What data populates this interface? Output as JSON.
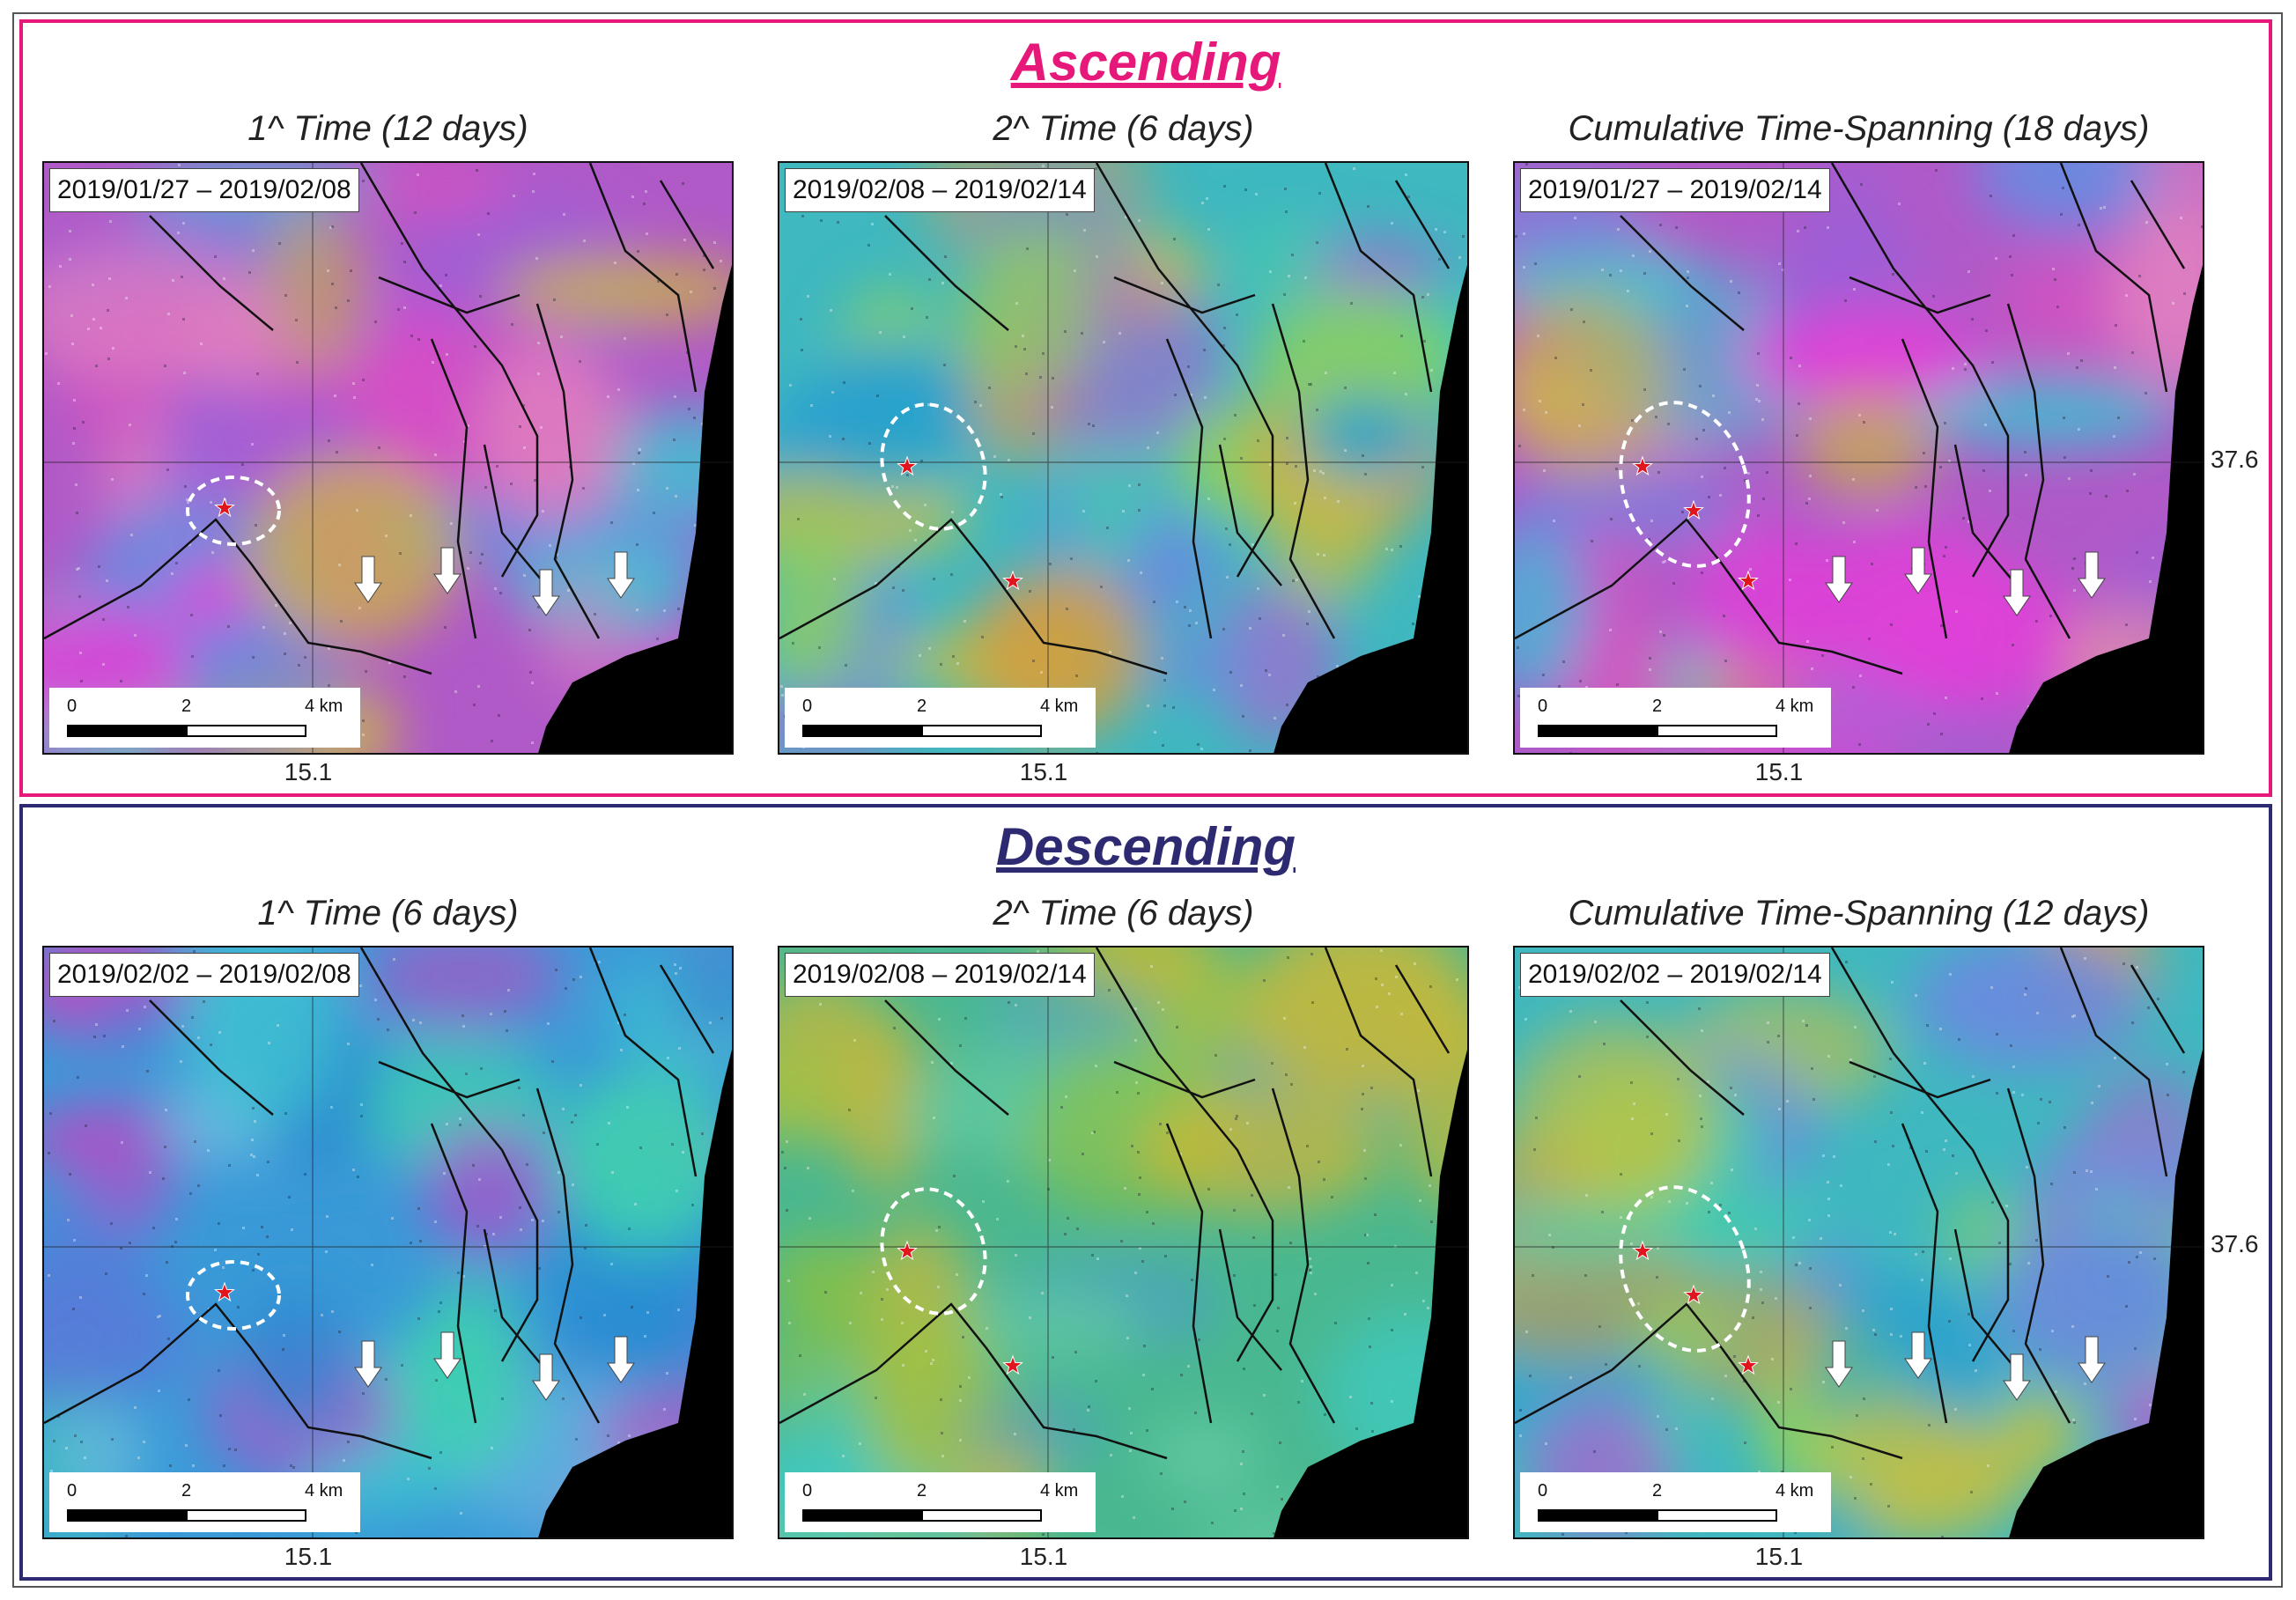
{
  "ascending": {
    "title": "Ascending",
    "panels": [
      {
        "title": "1^ Time (12 days)",
        "date": "2019/01/27 – 2019/02/08",
        "style": "pink",
        "ellipse": "small",
        "arrows": true
      },
      {
        "title": "2^ Time (6 days)",
        "date": "2019/02/08 – 2019/02/14",
        "style": "cyan",
        "ellipse": "medium",
        "arrows": false
      },
      {
        "title": "Cumulative   Time-Spanning (18 days)",
        "date": "2019/01/27 – 2019/02/14",
        "style": "pink",
        "ellipse": "large",
        "arrows": true
      }
    ]
  },
  "descending": {
    "title": "Descending",
    "panels": [
      {
        "title": "1^ Time (6 days)",
        "date": "2019/02/02 – 2019/02/08",
        "style": "cyanblue",
        "ellipse": "small",
        "arrows": true
      },
      {
        "title": "2^ Time (6 days)",
        "date": "2019/02/08 – 2019/02/14",
        "style": "green",
        "ellipse": "medium",
        "arrows": false
      },
      {
        "title": "Cumulative   Time-Spanning (12 days)",
        "date": "2019/02/02 – 2019/02/14",
        "style": "cyan",
        "ellipse": "large",
        "arrows": true
      }
    ]
  },
  "scale_bar": {
    "zero": "0",
    "mid": "2",
    "end": "4 km"
  },
  "longitude_label": "15.1",
  "latitude_label": "37.6",
  "colors": {
    "ascending_frame": "#e6197a",
    "descending_frame": "#2d2a72",
    "star": "#e0151e",
    "sea": "#000000"
  },
  "icons": [
    "star-marker-icon",
    "down-arrow-icon",
    "dashed-ellipse"
  ]
}
